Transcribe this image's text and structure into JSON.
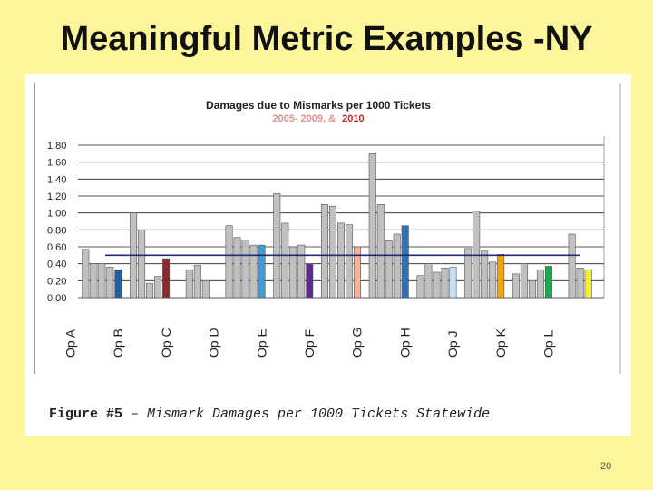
{
  "slide": {
    "title": "Meaningful Metric Examples -NY",
    "page_number": "20"
  },
  "caption": {
    "label": "Figure #5",
    "text": " – Mismark Damages per 1000 Tickets Statewide"
  },
  "colors": {
    "background": "#fdf59a",
    "bar_gray": "#c0c0c0",
    "reference_line": "#1f2a78"
  },
  "chart_data": {
    "type": "bar",
    "title": "Damages due to Mismarks per 1000 Tickets",
    "subtitle_a": "2005- 2009, &",
    "subtitle_b": "2010",
    "ylim": [
      0,
      1.8
    ],
    "yticks": [
      "0.00",
      "0.20",
      "0.40",
      "0.60",
      "0.80",
      "1.00",
      "1.20",
      "1.40",
      "1.60",
      "1.80"
    ],
    "reference_value": 0.5,
    "grid": true,
    "groups": [
      {
        "label": "Op A",
        "values": [
          0.57,
          0.4,
          0.4,
          0.36,
          0.33
        ],
        "color_2010": "#1f5fa8"
      },
      {
        "label": "Op B",
        "values": [
          1.0,
          0.8,
          0.17,
          0.25,
          0.46
        ],
        "color_2010": "#8b2a2a"
      },
      {
        "label": "Op C",
        "values": [
          0.33,
          0.38,
          0.2
        ],
        "color_2010": null
      },
      {
        "label": "Op D",
        "values": [
          0.85,
          0.71,
          0.68,
          0.62,
          0.62
        ],
        "color_2010": "#3b9ed8"
      },
      {
        "label": "Op E",
        "values": [
          1.23,
          0.88,
          0.6,
          0.62,
          0.4
        ],
        "color_2010": "#5b2c8a"
      },
      {
        "label": "Op F",
        "values": [
          1.1,
          1.08,
          0.88,
          0.86,
          0.6
        ],
        "color_2010": "#f4b39a"
      },
      {
        "label": "Op G",
        "values": [
          1.7,
          1.1,
          0.67,
          0.75,
          0.85
        ],
        "color_2010": "#2f6fc0"
      },
      {
        "label": "Op H",
        "values": [
          0.26,
          0.4,
          0.3,
          0.35,
          0.36
        ],
        "color_2010": "#c8e0f4"
      },
      {
        "label": "Op J",
        "values": [
          0.58,
          1.02,
          0.55,
          0.42,
          0.51
        ],
        "color_2010": "#f0a800"
      },
      {
        "label": "Op K",
        "values": [
          0.28,
          0.4,
          0.2,
          0.33,
          0.37
        ],
        "color_2010": "#1fa84a"
      },
      {
        "label": "Op L",
        "values": [
          0.75,
          0.35,
          0.33
        ],
        "color_2010": "#f2f22a"
      }
    ]
  }
}
